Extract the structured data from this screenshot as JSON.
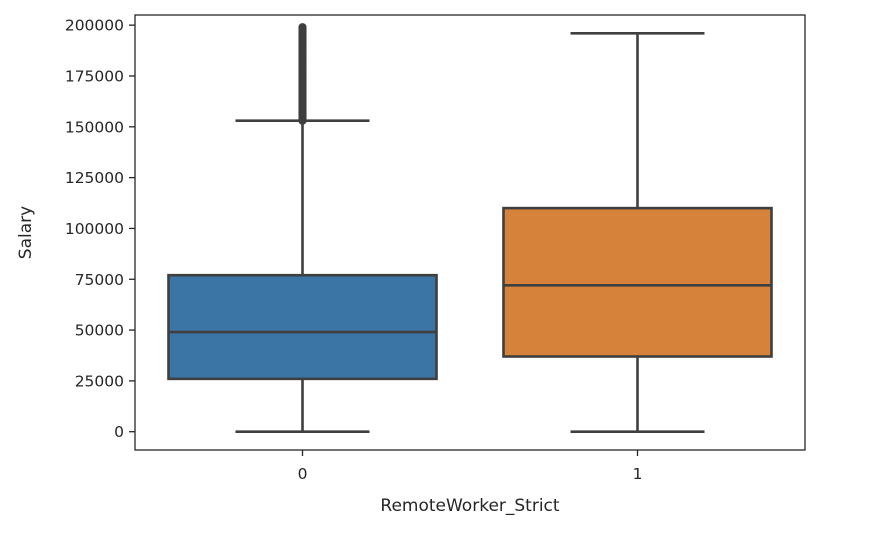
{
  "chart_data": {
    "type": "boxplot",
    "xlabel": "RemoteWorker_Strict",
    "ylabel": "Salary",
    "ylim": [
      -9000,
      205000
    ],
    "y_ticks": [
      0,
      25000,
      50000,
      75000,
      100000,
      125000,
      150000,
      175000,
      200000
    ],
    "y_tick_labels": [
      "0",
      "25000",
      "50000",
      "75000",
      "100000",
      "125000",
      "150000",
      "175000",
      "200000"
    ],
    "categories": [
      "0",
      "1"
    ],
    "grid": false,
    "legend": "none",
    "boxes": [
      {
        "category": "0",
        "color": "#3a75a5",
        "whisker_low": 0,
        "q1": 26000,
        "median": 49000,
        "q3": 77000,
        "whisker_high": 153000,
        "outliers_range": [
          153000,
          199000
        ]
      },
      {
        "category": "1",
        "color": "#d6823b",
        "whisker_low": 0,
        "q1": 37000,
        "median": 72000,
        "q3": 110000,
        "whisker_high": 196000,
        "outliers_range": []
      }
    ]
  }
}
